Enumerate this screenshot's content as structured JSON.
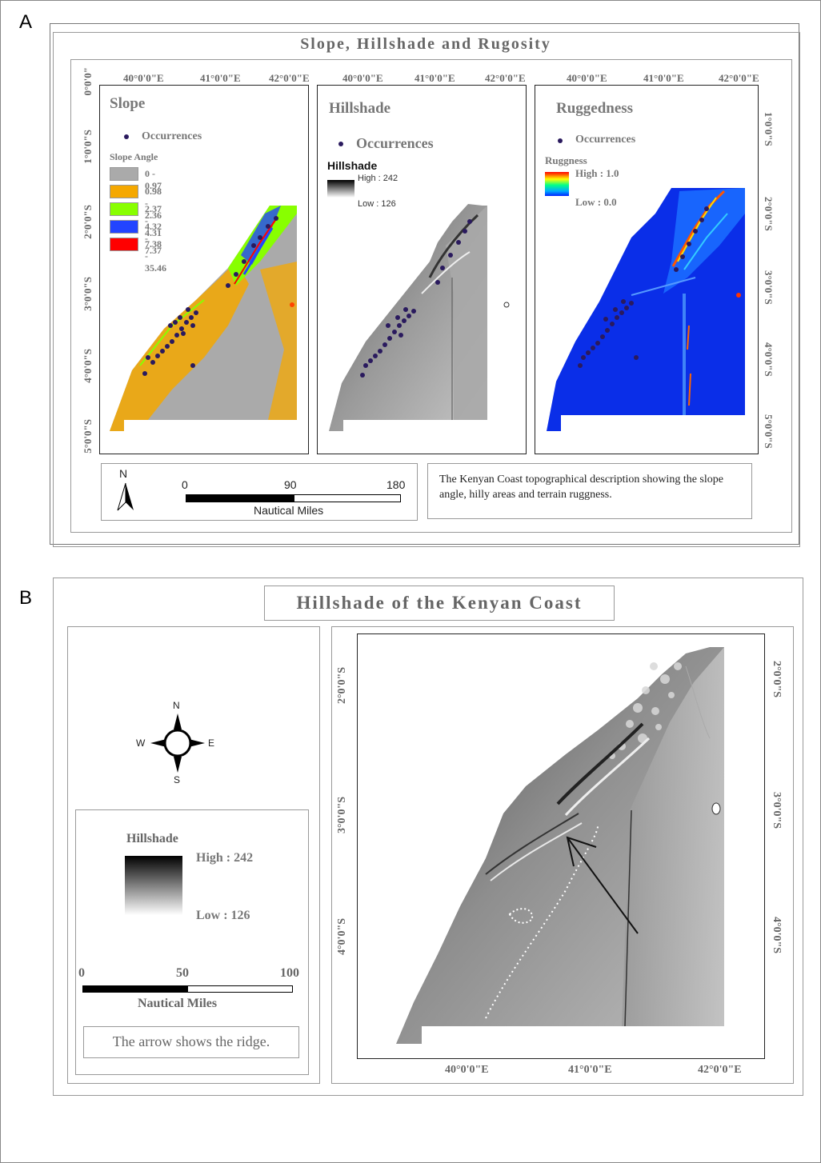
{
  "panel_a": {
    "letter": "A",
    "title": "Slope, Hillshade and Rugosity",
    "top_ticks": [
      "40°0'0\"E",
      "41°0'0\"E",
      "42°0'0\"E"
    ],
    "left_ticks": [
      "0°0'0\"",
      "1°0'0\"S",
      "2°0'0\"S",
      "3°0'0\"S",
      "4°0'0\"S",
      "5°0'0\"S"
    ],
    "right_ticks": [
      "1°0'0\"S",
      "2°0'0\"S",
      "3°0'0\"S",
      "4°0'0\"S",
      "5°0'0\"S"
    ],
    "slope": {
      "title": "Slope",
      "occurrences": "Occurrences",
      "legend_title": "Slope Angle",
      "classes": [
        {
          "label": "0 - 0.97",
          "color": "#aaaaaa"
        },
        {
          "label": "0.98 - 2.36",
          "color": "#f5a800"
        },
        {
          "label": "2.37 - 4.31",
          "color": "#88ff00"
        },
        {
          "label": "4.32 - 7.37",
          "color": "#2244ff"
        },
        {
          "label": "7.38 - 35.46",
          "color": "#ff0000"
        }
      ]
    },
    "hillshade": {
      "title": "Hillshade",
      "occurrences": "Occurrences",
      "legend_title": "Hillshade",
      "high": "High : 242",
      "low": "Low : 126"
    },
    "ruggedness": {
      "title": "Ruggedness",
      "occurrences": "Occurrences",
      "legend_title": "Ruggness",
      "high": "High : 1.0",
      "low": "Low : 0.0"
    },
    "scale": {
      "ticks": [
        "0",
        "90",
        "180"
      ],
      "unit": "Nautical Miles",
      "north": "N"
    },
    "caption": "The Kenyan Coast topographical description showing the slope angle, hilly areas and terrain ruggness."
  },
  "panel_b": {
    "letter": "B",
    "title": "Hillshade of the Kenyan Coast",
    "compass": {
      "n": "N",
      "s": "S",
      "e": "E",
      "w": "W"
    },
    "legend_title": "Hillshade",
    "high": "High : 242",
    "low": "Low : 126",
    "scale": {
      "ticks": [
        "0",
        "50",
        "100"
      ],
      "unit": "Nautical Miles"
    },
    "caption": "The arrow shows the ridge.",
    "bottom_ticks": [
      "40°0'0\"E",
      "41°0'0\"E",
      "42°0'0\"E"
    ],
    "side_ticks": [
      "2°0'0\"S",
      "3°0'0\"S",
      "4°0'0\"S"
    ]
  },
  "colors": {
    "occurrence": "#2a1a5e"
  }
}
